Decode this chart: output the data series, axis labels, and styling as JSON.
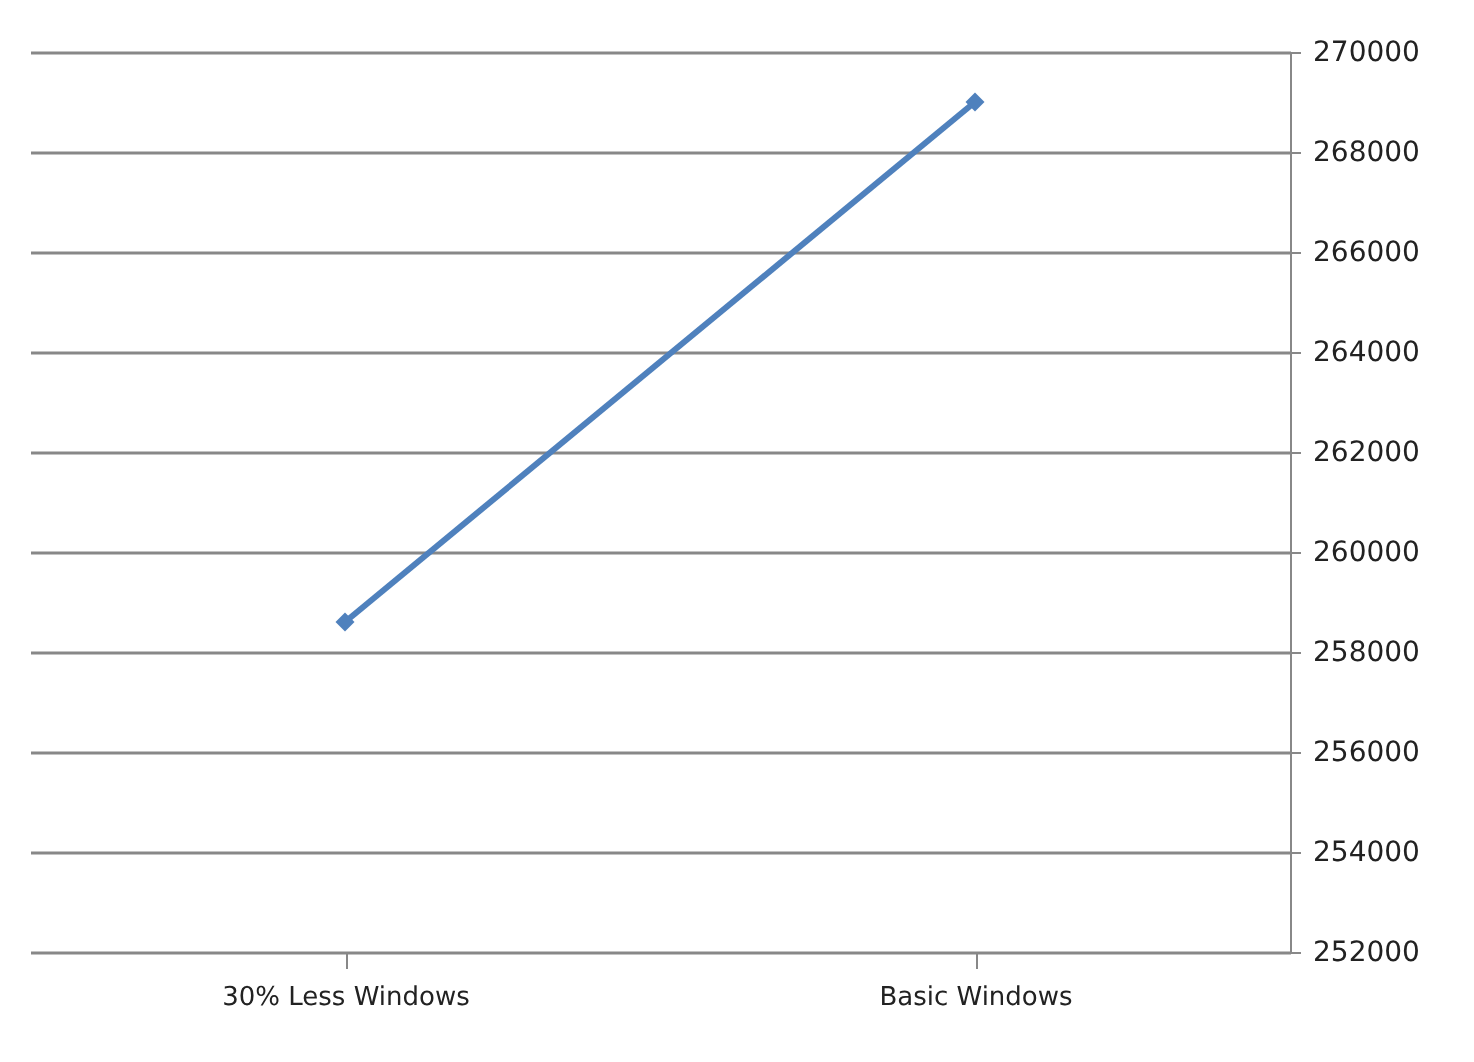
{
  "chart_data": {
    "type": "line",
    "categories": [
      "30% Less Windows",
      "Basic Windows"
    ],
    "series": [
      {
        "color": "#4f81bd",
        "values": [
          258600,
          269000
        ]
      }
    ],
    "ylim": [
      252000,
      270000
    ],
    "yticks": [
      252000,
      254000,
      256000,
      258000,
      260000,
      262000,
      264000,
      266000,
      268000,
      270000
    ],
    "grid": "y",
    "marker": "diamond",
    "line_style": "solid"
  }
}
